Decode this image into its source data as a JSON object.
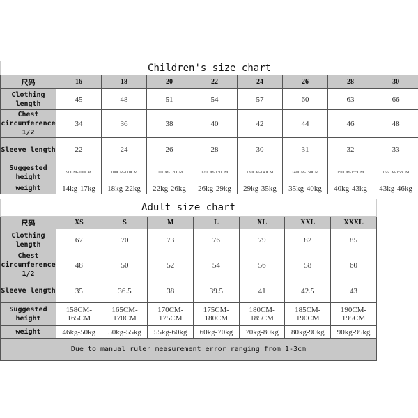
{
  "children": {
    "title": "Children's size chart",
    "size_label": "尺码",
    "sizes": [
      "16",
      "18",
      "20",
      "22",
      "24",
      "26",
      "28",
      "30"
    ],
    "rows": [
      {
        "label": "Clothing length",
        "values": [
          "45",
          "48",
          "51",
          "54",
          "57",
          "60",
          "63",
          "66"
        ]
      },
      {
        "label": "Chest circumference 1/2",
        "values": [
          "34",
          "36",
          "38",
          "40",
          "42",
          "44",
          "46",
          "48"
        ]
      },
      {
        "label": "Sleeve length",
        "values": [
          "22",
          "24",
          "26",
          "28",
          "30",
          "31",
          "32",
          "33"
        ]
      },
      {
        "label": "Suggested height",
        "values": [
          "90CM-100CM",
          "100CM-110CM",
          "110CM-120CM",
          "120CM-130CM",
          "130CM-140CM",
          "140CM-150CM",
          "150CM-155CM",
          "155CM-158CM"
        ]
      },
      {
        "label": "weight",
        "values": [
          "14kg-17kg",
          "18kg-22kg",
          "22kg-26kg",
          "26kg-29kg",
          "29kg-35kg",
          "35kg-40kg",
          "40kg-43kg",
          "43kg-46kg"
        ]
      }
    ]
  },
  "adult": {
    "title": "Adult size chart",
    "size_label": "尺码",
    "sizes": [
      "XS",
      "S",
      "M",
      "L",
      "XL",
      "XXL",
      "XXXL"
    ],
    "rows": [
      {
        "label": "Clothing length",
        "values": [
          "67",
          "70",
          "73",
          "76",
          "79",
          "82",
          "85"
        ]
      },
      {
        "label": "Chest circumference 1/2",
        "values": [
          "48",
          "50",
          "52",
          "54",
          "56",
          "58",
          "60"
        ]
      },
      {
        "label": "Sleeve length",
        "values": [
          "35",
          "36.5",
          "38",
          "39.5",
          "41",
          "42.5",
          "43"
        ]
      },
      {
        "label": "Suggested height",
        "values": [
          "158CM-165CM",
          "165CM-170CM",
          "170CM-175CM",
          "175CM-180CM",
          "180CM-185CM",
          "185CM-190CM",
          "190CM-195CM"
        ]
      },
      {
        "label": "weight",
        "values": [
          "46kg-50kg",
          "50kg-55kg",
          "55kg-60kg",
          "60kg-70kg",
          "70kg-80kg",
          "80kg-90kg",
          "90kg-95kg"
        ]
      }
    ],
    "note": "Due to manual ruler measurement error ranging from 1-3cm"
  }
}
